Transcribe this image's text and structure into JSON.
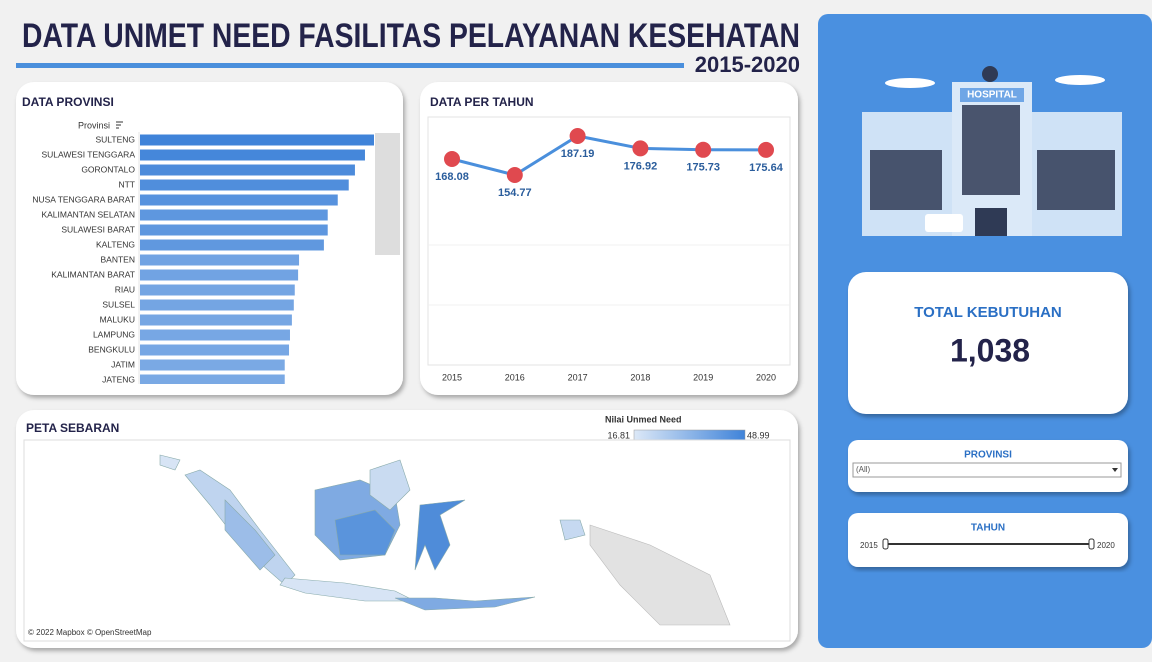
{
  "header": {
    "title": "DATA UNMET NEED FASILITAS PELAYANAN KESEHATAN",
    "subtitle": "2015-2020"
  },
  "chart_data": [
    {
      "type": "bar",
      "title": "DATA PROVINSI",
      "axis_label": "Provinsi",
      "categories": [
        "SULTENG",
        "SULAWESI TENGGARA",
        "GORONTALO",
        "NTT",
        "NUSA TENGGARA BARAT",
        "KALIMANTAN SELATAN",
        "SULAWESI BARAT",
        "KALTENG",
        "BANTEN",
        "KALIMANTAN BARAT",
        "RIAU",
        "SULSEL",
        "MALUKU",
        "LAMPUNG",
        "BENGKULU",
        "JATIM",
        "JATENG"
      ],
      "values": [
        48.99,
        47.1,
        45.0,
        43.7,
        41.4,
        39.3,
        39.3,
        38.5,
        33.3,
        33.1,
        32.4,
        32.2,
        31.8,
        31.4,
        31.2,
        30.3,
        30.3
      ]
    },
    {
      "type": "line",
      "title": "DATA PER TAHUN",
      "categories": [
        "2015",
        "2016",
        "2017",
        "2018",
        "2019",
        "2020"
      ],
      "values": [
        168.08,
        154.77,
        187.19,
        176.92,
        175.73,
        175.64
      ],
      "color": "#4a8fdc",
      "marker_color": "#e0494f"
    }
  ],
  "map": {
    "title": "PETA SEBARAN",
    "legend_title": "Nilai Unmed Need",
    "legend_min": 16.81,
    "legend_max": 48.99,
    "color_range": [
      "#dce8f7",
      "#3f83d9"
    ],
    "attribution": "© 2022 Mapbox © OpenStreetMap"
  },
  "kpi": {
    "label": "TOTAL KEBUTUHAN",
    "value": "1,038"
  },
  "filters": {
    "provinsi": {
      "label": "PROVINSI",
      "value": "(All)"
    },
    "tahun": {
      "label": "TAHUN",
      "start": "2015",
      "end": "2020"
    }
  }
}
